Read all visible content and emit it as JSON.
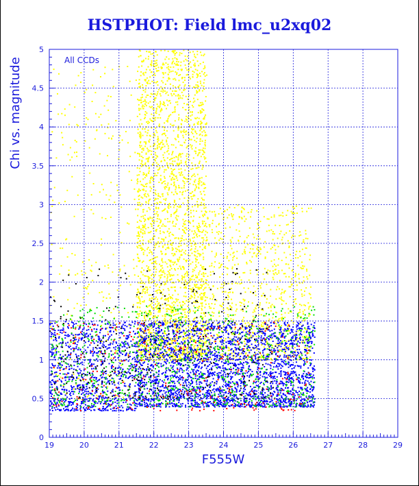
{
  "chart_data": {
    "type": "scatter",
    "title": "HSTPHOT: Field lmc_u2xq02",
    "xlabel": "F555W",
    "ylabel": "Chi vs. magnitude",
    "annotation": "All CCDs",
    "xlim": [
      19,
      29
    ],
    "ylim": [
      0,
      5
    ],
    "xticks": [
      19,
      20,
      21,
      22,
      23,
      24,
      25,
      26,
      27,
      28,
      29
    ],
    "yticks": [
      0,
      0.5,
      1,
      1.5,
      2,
      2.5,
      3,
      3.5,
      4,
      4.5,
      5
    ],
    "grid": true,
    "colors": {
      "axis": "#1a1adc",
      "grid": "#1a1adc",
      "yellow_series": "#ffff00",
      "blue_series": "#0000ff",
      "green_series": "#00dd00",
      "red_series": "#ff0000",
      "black_series": "#000000"
    },
    "series": [
      {
        "color": "yellow",
        "description_regions": [
          {
            "x_range": [
              19.0,
              21.5
            ],
            "y_range": [
              0.5,
              4.8
            ],
            "density": "sparse"
          },
          {
            "x_range": [
              21.5,
              23.5
            ],
            "y_range": [
              1.0,
              5.0
            ],
            "density": "dense"
          },
          {
            "x_range": [
              23.5,
              26.5
            ],
            "y_range": [
              1.0,
              3.0
            ],
            "density": "medium"
          }
        ]
      },
      {
        "color": "blue",
        "description_regions": [
          {
            "x_range": [
              19.0,
              21.5
            ],
            "y_range": [
              0.35,
              1.5
            ],
            "density": "medium"
          },
          {
            "x_range": [
              21.5,
              26.6
            ],
            "y_range": [
              0.4,
              1.5
            ],
            "density": "dense"
          }
        ]
      },
      {
        "color": "green",
        "description_regions": [
          {
            "x_range": [
              19.0,
              26.6
            ],
            "y_range": [
              0.4,
              1.7
            ],
            "density": "medium"
          }
        ]
      },
      {
        "color": "red",
        "description_regions": [
          {
            "x_range": [
              19.0,
              26.5
            ],
            "y_range": [
              0.35,
              1.5
            ],
            "density": "sparse"
          }
        ]
      },
      {
        "color": "black",
        "description_regions": [
          {
            "x_range": [
              19.0,
              25.5
            ],
            "y_range": [
              0.5,
              2.2
            ],
            "density": "sparse"
          }
        ]
      }
    ]
  }
}
